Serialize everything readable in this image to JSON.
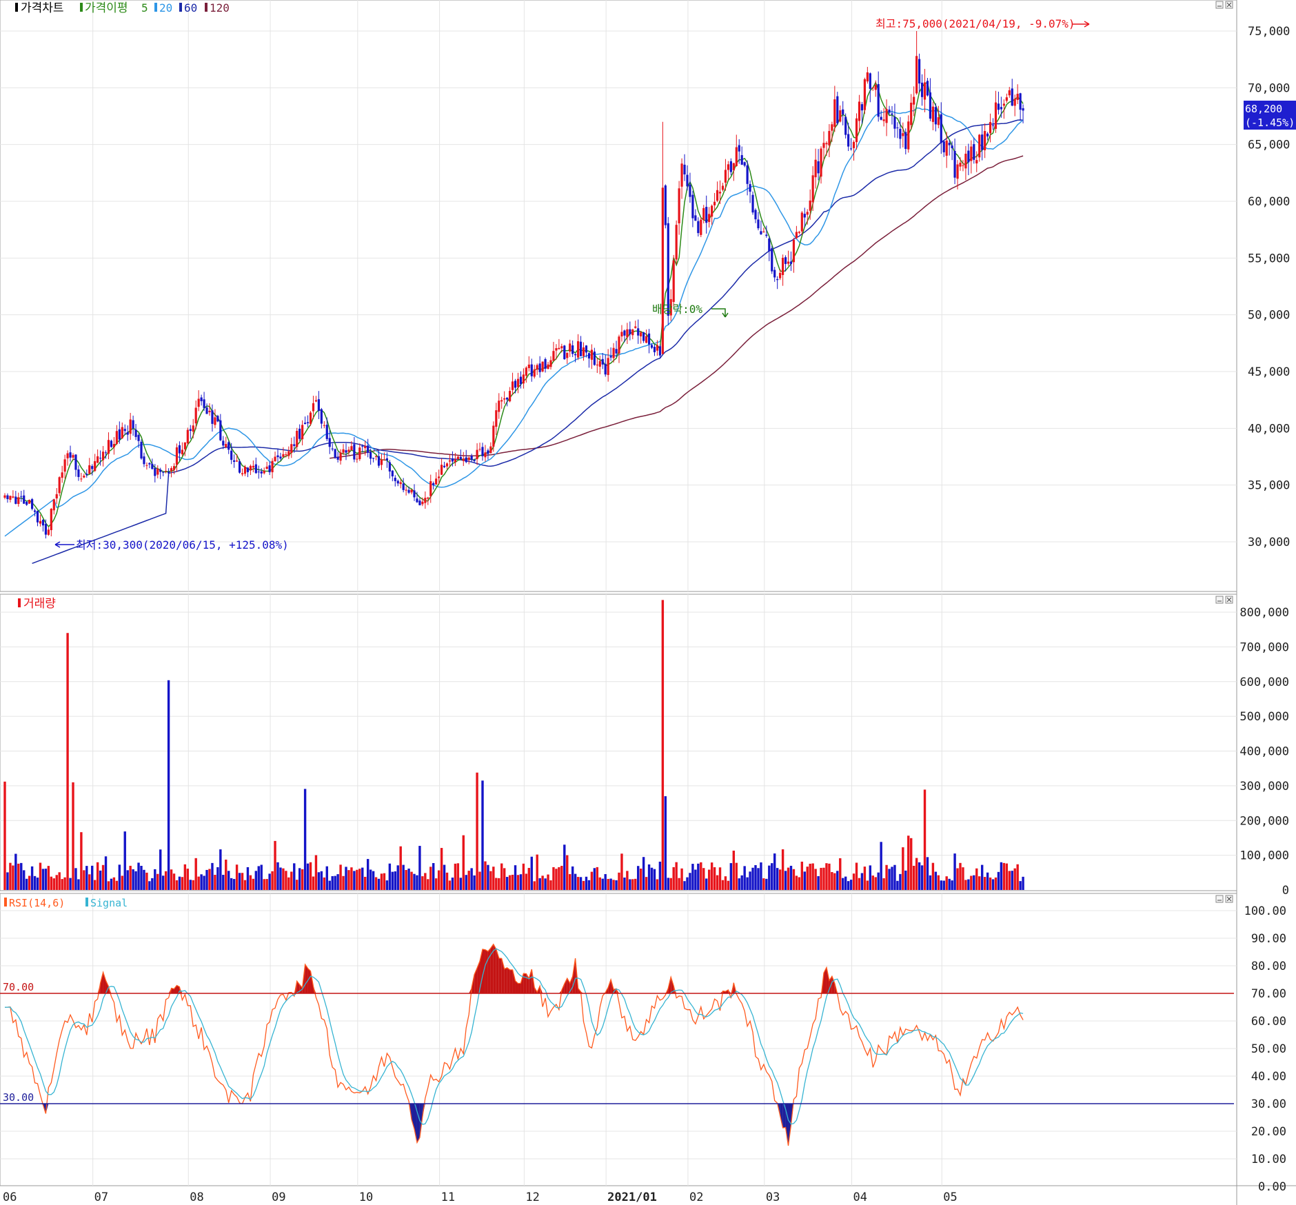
{
  "panels": {
    "price": {
      "title": "가격차트",
      "ma_label": "가격이평",
      "ma_periods": [
        "5",
        "20",
        "60",
        "120"
      ]
    },
    "volume": {
      "title": "거래량"
    },
    "rsi": {
      "title": "RSI(14,6)",
      "signal_label": "Signal"
    }
  },
  "colors": {
    "up": "#e8141b",
    "down": "#1414c8",
    "ma5": "#2c8a18",
    "ma20": "#2e96e6",
    "ma60": "#1b2aa8",
    "ma120": "#7a1f3a",
    "rsi": "#ff5a1e",
    "signal": "#36b4d2",
    "line70": "#c41414",
    "line30": "#1e1e9a",
    "current_price_bg": "#1f1fcf"
  },
  "x_axis": {
    "ticks": [
      "06",
      "07",
      "08",
      "09",
      "10",
      "11",
      "12",
      "2021/01",
      "02",
      "03",
      "04",
      "05"
    ]
  },
  "price_axis": {
    "ticks": [
      "75,000",
      "70,000",
      "65,000",
      "60,000",
      "55,000",
      "50,000",
      "45,000",
      "40,000",
      "35,000",
      "30,000"
    ]
  },
  "volume_axis": {
    "ticks": [
      "800,000",
      "700,000",
      "600,000",
      "500,000",
      "400,000",
      "300,000",
      "200,000",
      "100,000",
      "0"
    ]
  },
  "rsi_axis": {
    "ticks": [
      "100.00",
      "90.00",
      "80.00",
      "70.00",
      "60.00",
      "50.00",
      "40.00",
      "30.00",
      "20.00",
      "10.00",
      "0.00"
    ]
  },
  "annotations": {
    "high": "최고:75,000(2021/04/19, -9.07%)",
    "low": "최저:30,300(2020/06/15, +125.08%)",
    "dividend": "배당락:0%",
    "current_price": "68,200",
    "current_change": "(-1.45%)",
    "rsi_upper": "70.00",
    "rsi_lower": "30.00"
  },
  "chart_data": [
    {
      "type": "candlestick",
      "title": "가격차트",
      "ylim": [
        25500,
        77500
      ],
      "month_starts": [
        "06",
        "07",
        "08",
        "09",
        "10",
        "11",
        "12",
        "2021/01",
        "02",
        "03",
        "04",
        "05"
      ],
      "series_names": [
        "가격이평 5",
        "20",
        "60",
        "120"
      ],
      "anchors": [
        [
          0,
          34200
        ],
        [
          10,
          33400
        ],
        [
          15,
          30300
        ],
        [
          19,
          34500
        ],
        [
          23,
          38200
        ],
        [
          28,
          35200
        ],
        [
          40,
          39100
        ],
        [
          46,
          40200
        ],
        [
          52,
          36500
        ],
        [
          58,
          35700
        ],
        [
          66,
          38900
        ],
        [
          72,
          42800
        ],
        [
          77,
          40400
        ],
        [
          86,
          36600
        ],
        [
          96,
          36300
        ],
        [
          108,
          39400
        ],
        [
          114,
          42000
        ],
        [
          121,
          37500
        ],
        [
          131,
          38100
        ],
        [
          141,
          36500
        ],
        [
          148,
          34600
        ],
        [
          153,
          33000
        ],
        [
          158,
          36000
        ],
        [
          166,
          37400
        ],
        [
          177,
          37800
        ],
        [
          181,
          42200
        ],
        [
          191,
          45100
        ],
        [
          197,
          45800
        ],
        [
          210,
          47100
        ],
        [
          220,
          45500
        ],
        [
          228,
          49300
        ],
        [
          236,
          47300
        ],
        [
          242,
          46600
        ],
        [
          248,
          62800
        ],
        [
          253,
          57900
        ],
        [
          258,
          58900
        ],
        [
          263,
          60800
        ],
        [
          268,
          65400
        ],
        [
          271,
          62100
        ],
        [
          276,
          58200
        ],
        [
          283,
          53400
        ],
        [
          289,
          55700
        ],
        [
          295,
          61000
        ],
        [
          304,
          68200
        ],
        [
          310,
          65200
        ],
        [
          316,
          70800
        ],
        [
          322,
          67300
        ],
        [
          330,
          65500
        ],
        [
          335,
          70800
        ],
        [
          342,
          66500
        ],
        [
          349,
          62600
        ],
        [
          356,
          64300
        ],
        [
          362,
          67400
        ],
        [
          368,
          69100
        ],
        [
          373,
          68200
        ]
      ],
      "high_low_marks": {
        "high": 75000,
        "low": 30300
      }
    },
    {
      "type": "bar",
      "title": "거래량",
      "ylim": [
        0,
        850000
      ],
      "spikes": [
        [
          0,
          312000
        ],
        [
          23,
          740000
        ],
        [
          25,
          310000
        ],
        [
          60,
          604000
        ],
        [
          110,
          291000
        ],
        [
          173,
          338000
        ],
        [
          175,
          315000
        ],
        [
          241,
          835000
        ],
        [
          242,
          270000
        ],
        [
          337,
          289000
        ]
      ]
    },
    {
      "type": "line",
      "title": "RSI(14,6)",
      "series": [
        {
          "name": "RSI(14,6)"
        },
        {
          "name": "Signal"
        }
      ],
      "ylim": [
        0,
        100
      ],
      "thresholds": [
        70,
        30
      ],
      "anchors": [
        [
          0,
          68
        ],
        [
          6,
          52
        ],
        [
          15,
          29
        ],
        [
          23,
          62
        ],
        [
          30,
          57
        ],
        [
          36,
          75
        ],
        [
          45,
          52
        ],
        [
          55,
          55
        ],
        [
          62,
          75
        ],
        [
          70,
          59
        ],
        [
          82,
          31
        ],
        [
          90,
          34
        ],
        [
          100,
          70
        ],
        [
          108,
          72
        ],
        [
          110,
          79
        ],
        [
          115,
          68
        ],
        [
          122,
          38
        ],
        [
          132,
          33
        ],
        [
          140,
          48
        ],
        [
          148,
          33
        ],
        [
          151,
          17
        ],
        [
          156,
          38
        ],
        [
          168,
          51
        ],
        [
          173,
          81
        ],
        [
          178,
          88
        ],
        [
          185,
          76
        ],
        [
          192,
          78
        ],
        [
          200,
          61
        ],
        [
          209,
          80
        ],
        [
          214,
          50
        ],
        [
          221,
          75
        ],
        [
          231,
          53
        ],
        [
          244,
          75
        ],
        [
          252,
          60
        ],
        [
          262,
          67
        ],
        [
          268,
          73
        ],
        [
          275,
          50
        ],
        [
          283,
          30
        ],
        [
          287,
          18
        ],
        [
          292,
          45
        ],
        [
          301,
          78
        ],
        [
          307,
          65
        ],
        [
          318,
          46
        ],
        [
          330,
          58
        ],
        [
          342,
          51
        ],
        [
          350,
          34
        ],
        [
          356,
          47
        ],
        [
          362,
          56
        ],
        [
          368,
          63
        ],
        [
          371,
          62
        ]
      ]
    }
  ]
}
